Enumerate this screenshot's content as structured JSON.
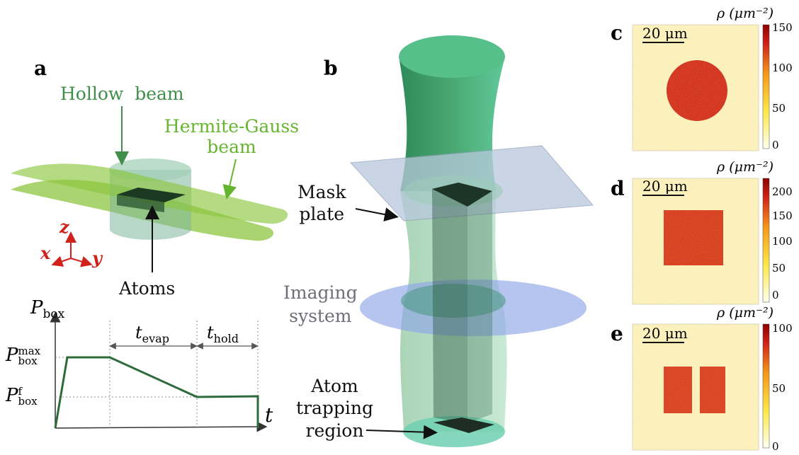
{
  "panels": {
    "a": "a",
    "b": "b",
    "c": "c",
    "d": "d",
    "e": "e"
  },
  "panel_a": {
    "hollow_beam": "Hollow  beam",
    "hermite_gauss_line1": "Hermite-Gauss",
    "hermite_gauss_line2": "beam",
    "atoms": "Atoms",
    "axis_x": "x",
    "axis_y": "y",
    "axis_z": "z",
    "colors": {
      "hollow": "#3f8f4a",
      "hermite": "#66b52e",
      "axes": "#d0211a"
    }
  },
  "ramp_plot": {
    "y_axis_label": "P",
    "y_axis_sub": "box",
    "pmax_label": "P",
    "pmax_sub": "box",
    "pmax_sup": "max",
    "pf_label": "P",
    "pf_sub": "box",
    "pf_sup": "f",
    "t_label": "t",
    "t_evap": "t",
    "t_evap_sub": "evap",
    "t_hold": "t",
    "t_hold_sub": "hold",
    "line_color": "#2e6b3a"
  },
  "panel_b": {
    "mask_plate_line1": "Mask",
    "mask_plate_line2": "plate",
    "imaging_line1": "Imaging",
    "imaging_line2": "system",
    "trap_line1": "Atom",
    "trap_line2": "trapping",
    "trap_line3": "region"
  },
  "images": [
    {
      "id": "c",
      "scale": "20 μm",
      "cbar_title": "ρ (μm⁻²)",
      "ticks": [
        "150",
        "100",
        "50",
        "0"
      ],
      "shape": "circle"
    },
    {
      "id": "d",
      "scale": "20 μm",
      "cbar_title": "ρ (μm⁻²)",
      "ticks": [
        "200",
        "150",
        "100",
        "50",
        "0"
      ],
      "shape": "square"
    },
    {
      "id": "e",
      "scale": "20 μm",
      "cbar_title": "ρ (μm⁻²)",
      "ticks": [
        "100",
        "50",
        "0"
      ],
      "shape": "two-bars"
    }
  ],
  "colormap": {
    "low": "#fffff0",
    "mid": "#f59a1a",
    "high": "#8b0000"
  }
}
